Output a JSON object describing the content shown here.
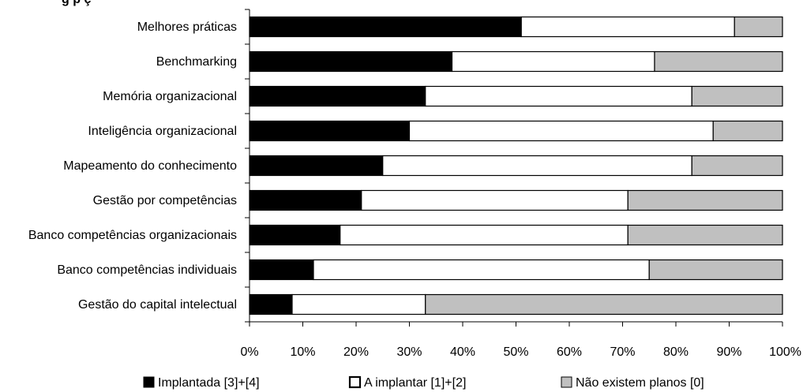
{
  "chart_data": {
    "type": "bar",
    "orientation": "horizontal",
    "stacked": true,
    "title_partial": "g    p    ç",
    "categories": [
      "Melhores práticas",
      "Benchmarking",
      "Memória organizacional",
      "Inteligência organizacional",
      "Mapeamento do conhecimento",
      "Gestão por competências",
      "Banco competências organizacionais",
      "Banco competências individuais",
      "Gestão do capital intelectual"
    ],
    "series": [
      {
        "name": "Implantada [3]+[4]",
        "color": "#000000",
        "values": [
          51,
          38,
          33,
          30,
          25,
          21,
          17,
          12,
          8
        ]
      },
      {
        "name": "A implantar [1]+[2]",
        "color": "#ffffff",
        "values": [
          40,
          38,
          50,
          57,
          58,
          50,
          54,
          63,
          25
        ]
      },
      {
        "name": "Não existem planos [0]",
        "color": "#c0c0c0",
        "values": [
          9,
          24,
          17,
          13,
          17,
          29,
          29,
          25,
          67
        ]
      }
    ],
    "xlim": [
      0,
      100
    ],
    "x_ticks": [
      "0%",
      "10%",
      "20%",
      "30%",
      "40%",
      "50%",
      "60%",
      "70%",
      "80%",
      "90%",
      "100%"
    ],
    "grid": false,
    "legend_position": "bottom"
  }
}
